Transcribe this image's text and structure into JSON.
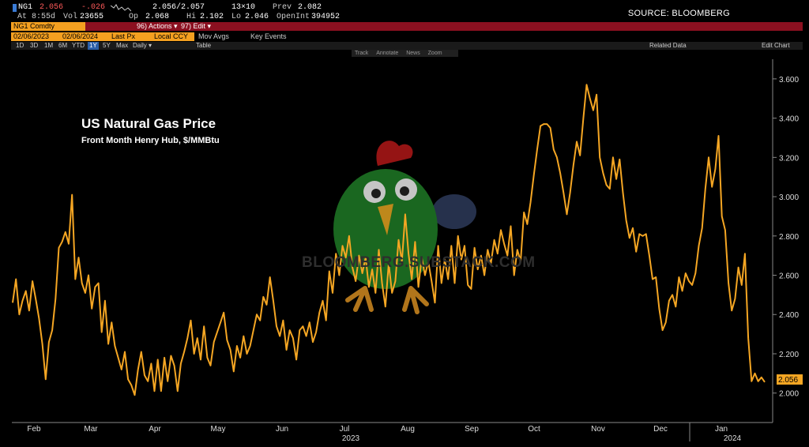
{
  "header": {
    "ticker": "NG1",
    "last": "2.056",
    "change": "-.026",
    "bid_ask": "2.056/2.057",
    "size": "13×10",
    "prev_label": "Prev",
    "prev": "2.082",
    "time": "At 8:55d",
    "vol_label": "Vol",
    "vol": "23655",
    "op_label": "Op",
    "op": "2.068",
    "hi_label": "Hi",
    "hi": "2.102",
    "lo_label": "Lo",
    "lo": "2.046",
    "oi_label": "OpenInt",
    "oi": "394952",
    "source": "SOURCE: BLOOMBERG"
  },
  "toolbar": {
    "security": "NG1 Comdty",
    "actions": "96) Actions ▾",
    "edit": "97) Edit ▾",
    "start_date": "02/06/2023",
    "end_date": "02/06/2024",
    "field": "Last Px",
    "currency": "Local CCY",
    "mov_avgs": "Mov Avgs",
    "key_events": "Key Events",
    "related_data": "Related Data",
    "edit_chart": "Edit Chart",
    "periods": [
      "1D",
      "3D",
      "1M",
      "6M",
      "YTD",
      "1Y",
      "5Y",
      "Max"
    ],
    "selected_period": "1Y",
    "frequency": "Daily ▾",
    "table": "Table",
    "chart_tools": [
      "Track",
      "Annotate",
      "News",
      "Zoom"
    ]
  },
  "watermark": "BLOOMBERG.SUBSTACK.COM",
  "colors": {
    "line": "#f5a623",
    "background": "#000000",
    "accent": "#8b1020"
  },
  "chart_data": {
    "type": "line",
    "title": "US Natural Gas Price",
    "subtitle": "Front Month Henry Hub, $/MMBtu",
    "xlabel": "",
    "ylabel": "",
    "ylim": [
      1.85,
      3.7
    ],
    "yticks": [
      "2.000",
      "2.200",
      "2.400",
      "2.600",
      "2.800",
      "3.000",
      "3.200",
      "3.400",
      "3.600"
    ],
    "xticks": [
      "Feb",
      "Mar",
      "Apr",
      "May",
      "Jun",
      "Jul",
      "Aug",
      "Sep",
      "Oct",
      "Nov",
      "Dec",
      "Jan"
    ],
    "year_labels": [
      "2023",
      "2024"
    ],
    "last_value": "2.056",
    "grid": false,
    "series": [
      {
        "values": [
          2.46,
          2.58,
          2.4,
          2.47,
          2.52,
          2.42,
          2.57,
          2.48,
          2.38,
          2.25,
          2.07,
          2.26,
          2.32,
          2.48,
          2.74,
          2.77,
          2.82,
          2.76,
          3.01,
          2.58,
          2.69,
          2.56,
          2.51,
          2.6,
          2.43,
          2.54,
          2.56,
          2.31,
          2.47,
          2.25,
          2.36,
          2.24,
          2.18,
          2.12,
          2.21,
          2.07,
          2.04,
          1.99,
          2.12,
          2.21,
          2.09,
          2.06,
          2.15,
          2.01,
          2.17,
          2.01,
          2.18,
          2.06,
          2.19,
          2.14,
          2.01,
          2.15,
          2.21,
          2.28,
          2.37,
          2.2,
          2.28,
          2.17,
          2.34,
          2.18,
          2.14,
          2.26,
          2.31,
          2.36,
          2.41,
          2.27,
          2.22,
          2.11,
          2.24,
          2.18,
          2.29,
          2.2,
          2.24,
          2.32,
          2.4,
          2.37,
          2.49,
          2.45,
          2.59,
          2.47,
          2.34,
          2.29,
          2.37,
          2.22,
          2.32,
          2.28,
          2.17,
          2.32,
          2.34,
          2.29,
          2.36,
          2.26,
          2.31,
          2.41,
          2.47,
          2.37,
          2.62,
          2.51,
          2.71,
          2.6,
          2.75,
          2.69,
          2.8,
          2.64,
          2.57,
          2.7,
          2.61,
          2.69,
          2.54,
          2.63,
          2.51,
          2.73,
          2.56,
          2.44,
          2.66,
          2.51,
          2.57,
          2.78,
          2.67,
          2.91,
          2.71,
          2.58,
          2.77,
          2.54,
          2.69,
          2.6,
          2.67,
          2.57,
          2.46,
          2.75,
          2.56,
          2.68,
          2.58,
          2.75,
          2.56,
          2.8,
          2.68,
          2.75,
          2.55,
          2.53,
          2.74,
          2.63,
          2.7,
          2.6,
          2.73,
          2.66,
          2.78,
          2.71,
          2.83,
          2.76,
          2.7,
          2.85,
          2.6,
          2.73,
          2.67,
          2.92,
          2.86,
          2.97,
          3.11,
          3.24,
          3.36,
          3.37,
          3.37,
          3.35,
          3.24,
          3.2,
          3.12,
          3.02,
          2.91,
          3.02,
          3.16,
          3.28,
          3.21,
          3.4,
          3.57,
          3.5,
          3.44,
          3.52,
          3.2,
          3.12,
          3.06,
          3.04,
          3.2,
          3.09,
          3.19,
          3.02,
          2.88,
          2.79,
          2.84,
          2.72,
          2.81,
          2.8,
          2.81,
          2.7,
          2.58,
          2.59,
          2.43,
          2.32,
          2.36,
          2.47,
          2.5,
          2.44,
          2.59,
          2.52,
          2.61,
          2.57,
          2.55,
          2.61,
          2.75,
          2.84,
          3.04,
          3.2,
          3.05,
          3.14,
          3.31,
          2.9,
          2.83,
          2.56,
          2.42,
          2.48,
          2.64,
          2.55,
          2.71,
          2.28,
          2.06,
          2.1,
          2.06,
          2.08,
          2.056
        ]
      }
    ]
  }
}
